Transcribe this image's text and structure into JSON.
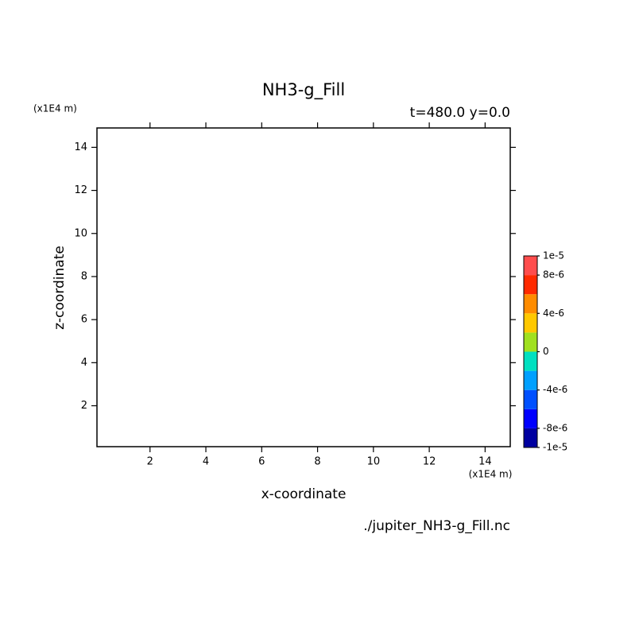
{
  "chart_data": {
    "type": "contour",
    "title": "NH3-g_Fill",
    "subtitle": "t=480.0 y=0.0",
    "x_label": "x-coordinate",
    "y_label": "z-coordinate",
    "x_unit": "(x1E4 m)",
    "y_unit": "(x1E4 m)",
    "source": "./jupiter_NH3-g_Fill.nc",
    "xlim": [
      0.1,
      14.9
    ],
    "xticks": [
      2,
      4,
      6,
      8,
      10,
      12,
      14
    ],
    "ylim": [
      0.1,
      14.9
    ],
    "yticks": [
      2,
      4,
      6,
      8,
      10,
      12,
      14
    ],
    "colorbar": {
      "lim": [
        -1e-05,
        1e-05
      ],
      "levels": [
        -1e-05,
        -8e-06,
        -6e-06,
        -4e-06,
        -2e-06,
        0,
        2e-06,
        4e-06,
        6e-06,
        8e-06,
        1e-05
      ],
      "colors": [
        "#0000a0",
        "#0000ff",
        "#0050ff",
        "#00a0ff",
        "#00e0c0",
        "#a0e020",
        "#ffc800",
        "#ff8c00",
        "#ff2a00",
        "#ff4d4d"
      ],
      "ticks": [
        {
          "value": -1e-05,
          "label": "-1e-5"
        },
        {
          "value": -8e-06,
          "label": "-8e-6"
        },
        {
          "value": -4e-06,
          "label": "-4e-6"
        },
        0,
        {
          "value": 4e-06,
          "label": "4e-6"
        },
        {
          "value": 8e-06,
          "label": "8e-6"
        },
        {
          "value": 1e-05,
          "label": "1e-5"
        }
      ]
    }
  }
}
